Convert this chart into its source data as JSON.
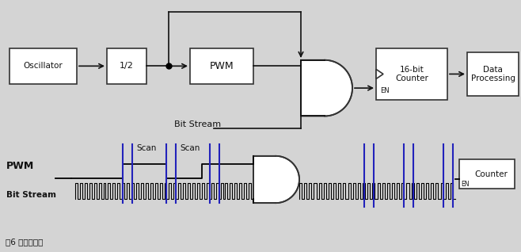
{
  "bg_color": "#d4d4d4",
  "panel_bg": "#d4d4d4",
  "box_color": "white",
  "box_edge": "#333333",
  "arrow_color": "#111111",
  "blue_color": "#2222bb",
  "text_color": "#111111",
  "caption": "圖6 輸出比特流",
  "top": {
    "osc": "Oscillator",
    "half": "1/2",
    "pwm": "PWM",
    "counter": "16-bit\nCounter",
    "data": "Data\nProcessing",
    "bs": "Bit Stream",
    "en": "EN"
  },
  "bot": {
    "pwm": "PWM",
    "bs": "Bit Stream",
    "scan": "Scan",
    "counter": "Counter",
    "en": "EN"
  }
}
